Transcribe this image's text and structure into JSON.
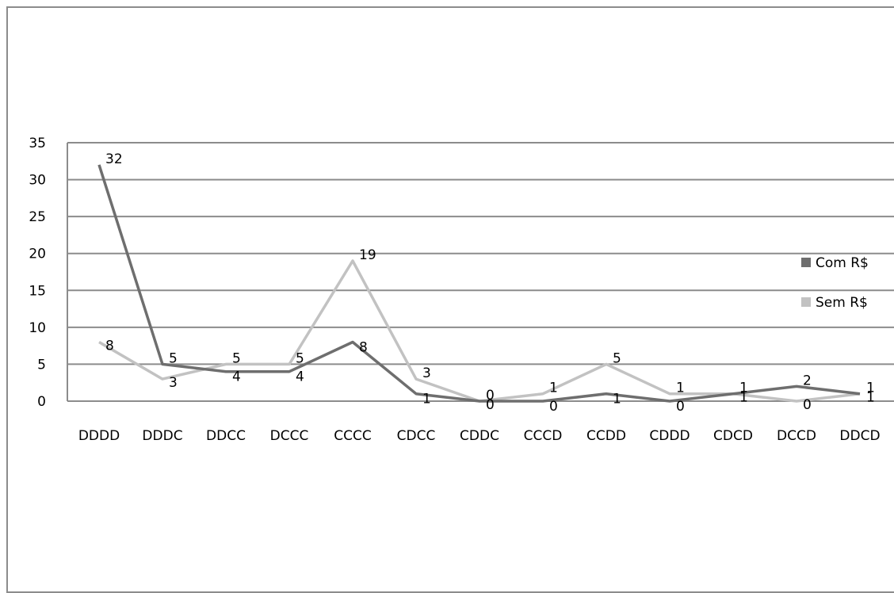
{
  "chart_data": {
    "type": "line",
    "title": "",
    "xlabel": "",
    "ylabel": "",
    "categories": [
      "DDDD",
      "DDDC",
      "DDCC",
      "DCCC",
      "CCCC",
      "CDCC",
      "CDDC",
      "CCCD",
      "CCDD",
      "CDDD",
      "CDCD",
      "DCCD",
      "DDCD"
    ],
    "ylim": [
      0,
      35
    ],
    "yticks": [
      "0",
      "5",
      "10",
      "15",
      "20",
      "25",
      "30",
      "35"
    ],
    "grid": true,
    "legend_position": "right",
    "series": [
      {
        "name": "Com R$",
        "color": "#6e6e6e",
        "values": [
          32,
          5,
          4,
          4,
          8,
          1,
          0,
          0,
          1,
          0,
          1,
          2,
          1
        ]
      },
      {
        "name": "Sem R$",
        "color": "#c2c2c2",
        "values": [
          8,
          3,
          5,
          5,
          19,
          3,
          0,
          1,
          5,
          1,
          1,
          0,
          1
        ]
      }
    ]
  }
}
